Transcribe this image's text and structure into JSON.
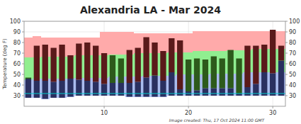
{
  "chart_data": {
    "type": "bar",
    "title": "Alexandria LA - Mar 2024",
    "ylabel": "Temperature (deg F)",
    "footnote": "Image created: Thu, 17 Oct 2024 11:00 GMT",
    "x": [
      1,
      2,
      3,
      4,
      5,
      6,
      7,
      8,
      9,
      10,
      11,
      12,
      13,
      14,
      15,
      16,
      17,
      18,
      19,
      20,
      21,
      22,
      23,
      24,
      25,
      26,
      27,
      28,
      29,
      30,
      31
    ],
    "xlim": [
      0.5,
      31.5
    ],
    "xticks": [
      10,
      20,
      30
    ],
    "ylim": [
      20,
      100
    ],
    "yticks": [
      30,
      40,
      50,
      60,
      70,
      80,
      90,
      100
    ],
    "grid": true,
    "series": [
      {
        "color": "#aabcee",
        "low": [
          28,
          28,
          27,
          28,
          28,
          29,
          30,
          30,
          30,
          30,
          30,
          30,
          29,
          29,
          29,
          29,
          29,
          30,
          30,
          30,
          30,
          30,
          30,
          30,
          30,
          30,
          30,
          30,
          30,
          30,
          30
        ],
        "values": [
          45,
          46,
          46,
          46,
          46,
          46,
          47,
          47,
          47,
          47,
          48,
          48,
          48,
          48,
          49,
          49,
          49,
          49,
          50,
          50,
          50,
          50,
          51,
          51,
          51,
          51,
          52,
          52,
          52,
          52,
          52
        ]
      },
      {
        "color": "#90ee90",
        "low": [
          45,
          46,
          46,
          46,
          46,
          46,
          47,
          47,
          47,
          47,
          48,
          48,
          48,
          48,
          49,
          49,
          49,
          49,
          50,
          50,
          50,
          50,
          51,
          51,
          51,
          51,
          52,
          52,
          52,
          52,
          52
        ],
        "values": [
          66,
          66,
          67,
          67,
          67,
          67,
          68,
          68,
          68,
          68,
          69,
          69,
          69,
          70,
          70,
          70,
          70,
          71,
          71,
          71,
          72,
          72,
          72,
          72,
          73,
          73,
          73,
          74,
          74,
          74,
          74
        ]
      },
      {
        "color": "#ffaaaa",
        "low": [
          66,
          66,
          67,
          67,
          67,
          67,
          68,
          68,
          68,
          68,
          69,
          69,
          69,
          70,
          70,
          70,
          70,
          71,
          71,
          71,
          72,
          72,
          72,
          72,
          73,
          73,
          73,
          74,
          74,
          74,
          74
        ],
        "values": [
          85,
          86,
          85,
          85,
          85,
          85,
          85,
          85,
          85,
          90,
          90,
          90,
          90,
          89,
          89,
          89,
          89,
          89,
          89,
          89,
          91,
          91,
          91,
          91,
          91,
          91,
          91,
          91,
          91,
          91,
          91
        ]
      },
      {
        "color": "#2a3060",
        "low": [
          28,
          28,
          27,
          28,
          28,
          29,
          30,
          30,
          30,
          30,
          30,
          30,
          29,
          29,
          29,
          29,
          29,
          30,
          30,
          30,
          30,
          30,
          30,
          30,
          30,
          30,
          30,
          30,
          30,
          30,
          30
        ],
        "values": [
          46,
          44,
          44,
          43,
          44,
          46,
          45,
          44,
          43,
          41,
          42,
          42,
          42,
          43,
          47,
          49,
          44,
          52,
          36,
          34,
          35,
          37,
          37,
          37,
          37,
          32,
          38,
          41,
          52,
          51,
          63
        ]
      },
      {
        "colors": [
          "#2d5a1b",
          "#5a1a1a",
          "#5a1a1a",
          "#5a1a1a",
          "#5a1a1a",
          "#5a1a1a",
          "#5a1a1a",
          "#5a1a1a",
          "#5a1a1a",
          "#5a1a1a",
          "#2d5a1b",
          "#2d5a1b",
          "#5a1a1a",
          "#5a1a1a",
          "#5a1a1a",
          "#5a1a1a",
          "#5a1a1a",
          "#5a1a1a",
          "#5a1a1a",
          "#2d5a1b",
          "#2d5a1b",
          "#2d5a1b",
          "#2d5a1b",
          "#2d5a1b",
          "#2d5a1b",
          "#2d5a1b",
          "#5a1a1a",
          "#5a1a1a",
          "#5a1a1a",
          "#5a1a1a",
          "#5a1a1a"
        ],
        "low": [
          46,
          44,
          44,
          43,
          44,
          46,
          45,
          44,
          43,
          41,
          42,
          42,
          42,
          43,
          47,
          49,
          44,
          52,
          36,
          34,
          35,
          37,
          37,
          37,
          37,
          32,
          38,
          41,
          52,
          51,
          63
        ],
        "values": [
          47,
          77,
          78,
          75,
          78,
          68,
          79,
          80,
          77,
          70,
          68,
          65,
          73,
          75,
          85,
          80,
          72,
          84,
          82,
          64,
          65,
          64,
          67,
          65,
          73,
          65,
          77,
          77,
          78,
          92,
          77
        ]
      }
    ],
    "reference_lines": [
      {
        "value": 32,
        "color": "#00cccc"
      }
    ]
  }
}
